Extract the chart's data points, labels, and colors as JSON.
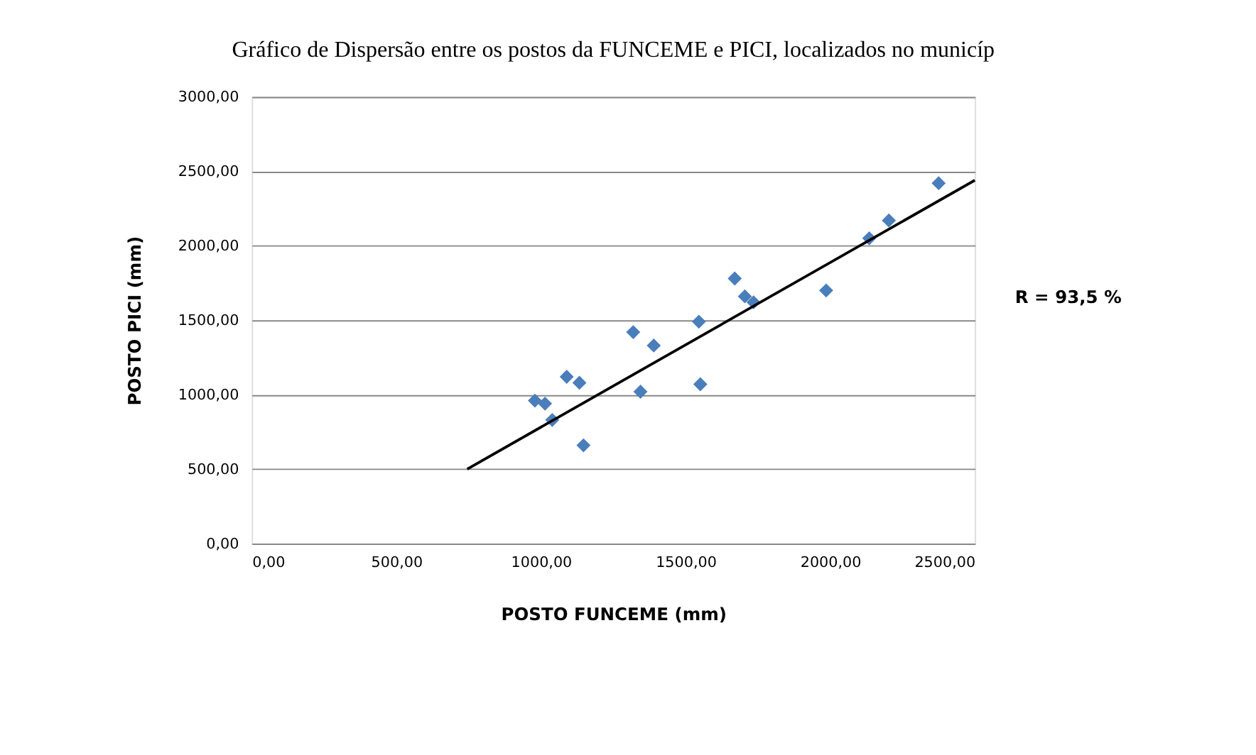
{
  "chart_data": {
    "type": "scatter",
    "title": "Gráfico de Dispersão entre os postos da FUNCEME e PICI, localizados no municíp",
    "xlabel": "POSTO FUNCEME (mm)",
    "ylabel": "POSTO PICI (mm)",
    "xlim": [
      0,
      2500
    ],
    "ylim": [
      0,
      3000
    ],
    "xticks": [
      {
        "value": 0,
        "label": "0,00"
      },
      {
        "value": 500,
        "label": "500,00"
      },
      {
        "value": 1000,
        "label": "1000,00"
      },
      {
        "value": 1500,
        "label": "1500,00"
      },
      {
        "value": 2000,
        "label": "2000,00"
      },
      {
        "value": 2500,
        "label": "2500,00"
      }
    ],
    "yticks": [
      {
        "value": 0,
        "label": "0,00"
      },
      {
        "value": 500,
        "label": "500,00"
      },
      {
        "value": 1000,
        "label": "1000,00"
      },
      {
        "value": 1500,
        "label": "1500,00"
      },
      {
        "value": 2000,
        "label": "2000,00"
      },
      {
        "value": 2500,
        "label": "2500,00"
      },
      {
        "value": 3000,
        "label": "3000,00"
      }
    ],
    "grid": "y",
    "series": [
      {
        "type": "scatter",
        "marker": "diamond",
        "color": "#4a7ebb",
        "x": [
          979,
          1014,
          1039,
          1089,
          1133,
          1147,
          1319,
          1344,
          1390,
          1546,
          1551,
          1670,
          1705,
          1735,
          1986,
          2135,
          2203,
          2375
        ],
        "values": [
          960,
          940,
          830,
          1120,
          1080,
          660,
          1420,
          1020,
          1330,
          1490,
          1070,
          1780,
          1660,
          1620,
          1700,
          2050,
          2170,
          2420
        ]
      },
      {
        "type": "line",
        "marker": "none",
        "line_style": "solid",
        "color": "#000000",
        "x": [
          745,
          2500
        ],
        "values": [
          500,
          2440
        ]
      }
    ],
    "annotations": [
      "R = 93,5 %"
    ]
  }
}
